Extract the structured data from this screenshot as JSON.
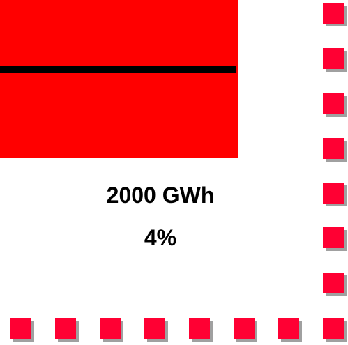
{
  "colors": {
    "background": "#ffffff",
    "block": "#ff0000",
    "line": "#000000",
    "square": "#ff0033",
    "square_shadow": "#a0a0a0"
  },
  "value": {
    "energy": "2000 GWh",
    "share": "4%"
  }
}
